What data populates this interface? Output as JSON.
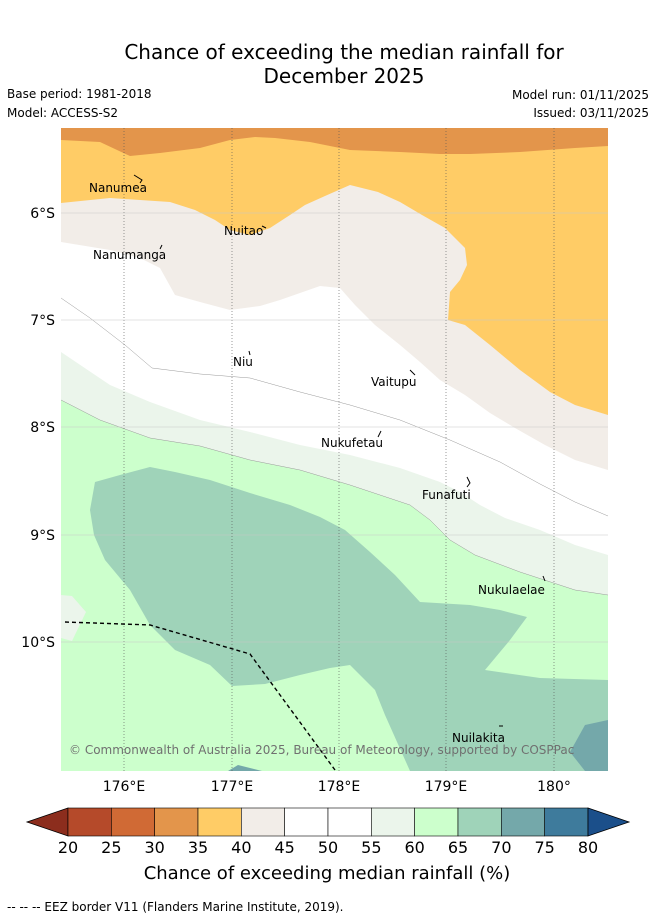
{
  "title_line1": "Chance of exceeding the median rainfall for",
  "title_line2": "December 2025",
  "base_period": "Base period: 1981-2018",
  "model": "Model: ACCESS-S2",
  "model_run": "Model run: 01/11/2025",
  "issued": "Issued: 03/11/2025",
  "latitude_labels": [
    "6°S",
    "7°S",
    "8°S",
    "9°S",
    "10°S"
  ],
  "longitude_labels": [
    "176°E",
    "177°E",
    "178°E",
    "179°E",
    "180°"
  ],
  "islands": [
    "Nanumea",
    "Nuitao",
    "Nanumanga",
    "Niu",
    "Vaitupu",
    "Nukufetau",
    "Funafuti",
    "Nukulaelae",
    "Nuilakita"
  ],
  "copyright": "© Commonwealth of Australia 2025, Bureau of Meteorology, supported by COSPPac",
  "colorbar": {
    "label": "Chance of exceeding median rainfall (%)",
    "ticks": [
      "20",
      "25",
      "30",
      "35",
      "40",
      "45",
      "50",
      "55",
      "60",
      "65",
      "70",
      "75",
      "80"
    ],
    "colors": [
      "#8c2d1d",
      "#b54a2a",
      "#d06a35",
      "#e3954b",
      "#ffcc66",
      "#f2ede8",
      "#ffffff",
      "#ffffff",
      "#ebf5eb",
      "#ccffcc",
      "#9fd3b9",
      "#74a8aa",
      "#3e7b9c",
      "#1b4f8a"
    ]
  },
  "footer": "--  --  -- EEZ border V11 (Flanders Marine Institute, 2019)."
}
